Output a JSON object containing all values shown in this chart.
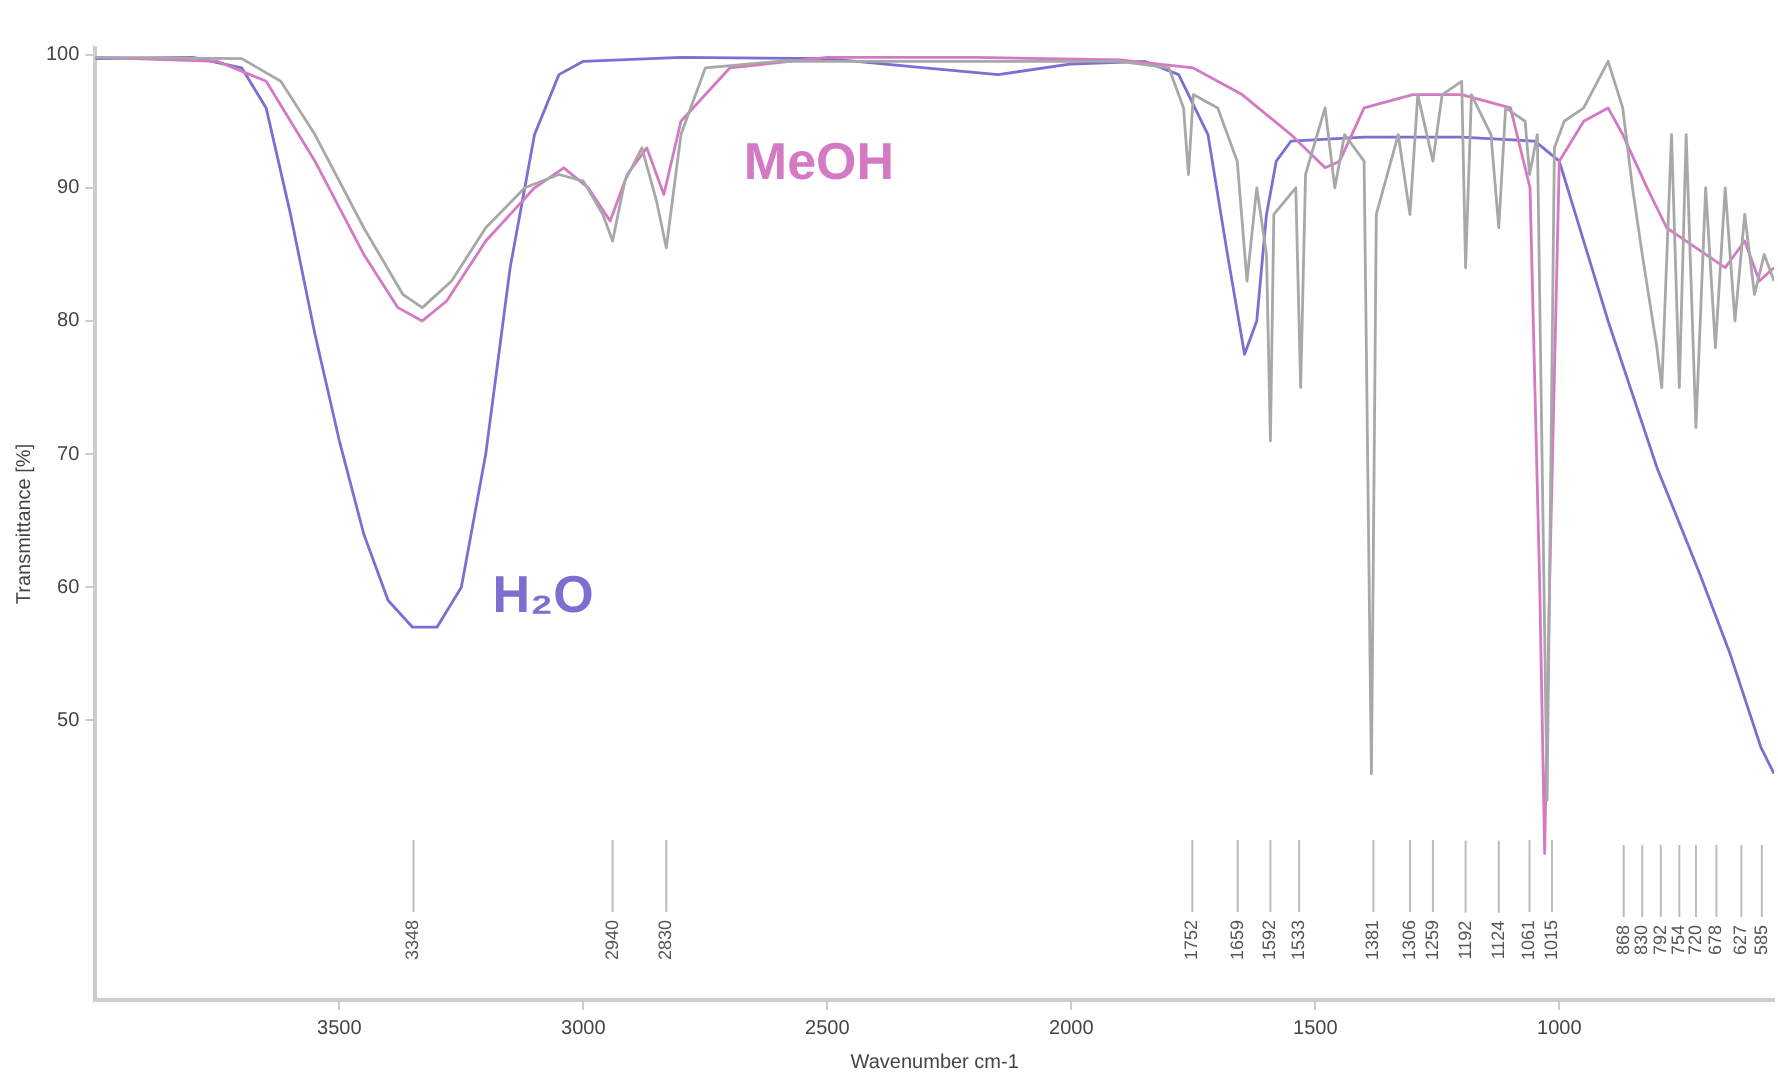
{
  "chart_data": {
    "type": "line",
    "xlabel": "Wavenumber cm-1",
    "ylabel": "Transmittance [%]",
    "xlim": [
      4000,
      560
    ],
    "xticks": [
      3500,
      3000,
      2500,
      2000,
      1500,
      1000
    ],
    "ylim": [
      29,
      100.5
    ],
    "yticks": [
      50,
      60,
      70,
      80,
      90,
      100
    ],
    "marker": "none",
    "line_style": "solid",
    "legend": false,
    "series": [
      {
        "name": null,
        "color": "#a8a8a8",
        "x": [
          4000,
          3700,
          3620,
          3550,
          3450,
          3370,
          3330,
          3270,
          3200,
          3120,
          3050,
          3000,
          2960,
          2940,
          2915,
          2880,
          2850,
          2830,
          2800,
          2750,
          2600,
          2200,
          1900,
          1800,
          1770,
          1760,
          1750,
          1700,
          1660,
          1640,
          1620,
          1600,
          1592,
          1585,
          1540,
          1530,
          1520,
          1480,
          1460,
          1440,
          1400,
          1385,
          1375,
          1330,
          1306,
          1290,
          1259,
          1240,
          1200,
          1192,
          1180,
          1140,
          1124,
          1110,
          1070,
          1061,
          1045,
          1025,
          1010,
          990,
          950,
          900,
          870,
          850,
          830,
          800,
          790,
          770,
          754,
          740,
          720,
          700,
          680,
          660,
          640,
          620,
          600,
          580,
          560
        ],
        "values": [
          99.8,
          99.7,
          98,
          94,
          87,
          82,
          81,
          83,
          87,
          90,
          91,
          90.5,
          88,
          86,
          90.5,
          93,
          89,
          85.5,
          94,
          99,
          99.5,
          99.5,
          99.5,
          99,
          96,
          91,
          97,
          96,
          92,
          83,
          90,
          85,
          71,
          88,
          90,
          75,
          91,
          96,
          90,
          94,
          92,
          46,
          88,
          94,
          88,
          97,
          92,
          97,
          98,
          84,
          97,
          94,
          87,
          96,
          95,
          91,
          94,
          44,
          93,
          95,
          96,
          99.5,
          96,
          90,
          85,
          78,
          75,
          94,
          75,
          94,
          72,
          90,
          78,
          90,
          80,
          88,
          82,
          85,
          83
        ]
      },
      {
        "name": "MeOH",
        "color": "#d47ac4",
        "x": [
          4000,
          3750,
          3650,
          3550,
          3450,
          3380,
          3330,
          3280,
          3200,
          3100,
          3040,
          2990,
          2945,
          2910,
          2870,
          2835,
          2800,
          2700,
          2500,
          2200,
          1900,
          1750,
          1650,
          1550,
          1480,
          1450,
          1400,
          1300,
          1200,
          1100,
          1060,
          1040,
          1030,
          1020,
          1000,
          950,
          900,
          870,
          820,
          780,
          740,
          700,
          660,
          620,
          590,
          560
        ],
        "values": [
          99.8,
          99.5,
          98,
          92,
          85,
          81,
          80,
          81.5,
          86,
          90,
          91.5,
          90,
          87.5,
          91,
          93,
          89.5,
          95,
          99,
          99.8,
          99.8,
          99.6,
          99,
          97,
          94,
          91.5,
          92,
          96,
          97,
          97,
          96,
          90,
          60,
          40,
          60,
          92,
          95,
          96,
          94,
          90,
          87,
          86,
          85,
          84,
          86,
          83,
          84
        ]
      },
      {
        "name": "H₂O",
        "color": "#7b6fd0",
        "x": [
          4000,
          3800,
          3700,
          3650,
          3600,
          3550,
          3500,
          3450,
          3400,
          3350,
          3300,
          3250,
          3200,
          3150,
          3100,
          3050,
          3000,
          2800,
          2500,
          2300,
          2150,
          2000,
          1850,
          1780,
          1720,
          1680,
          1645,
          1620,
          1600,
          1580,
          1550,
          1400,
          1200,
          1050,
          1000,
          900,
          800,
          712,
          650,
          587,
          560
        ],
        "values": [
          99.7,
          99.8,
          99,
          96,
          88,
          79,
          71,
          64,
          59,
          57,
          57,
          60,
          70,
          84,
          94,
          98.5,
          99.5,
          99.8,
          99.7,
          99,
          98.5,
          99.3,
          99.5,
          98.5,
          94,
          85,
          77.5,
          80,
          88,
          92,
          93.5,
          93.8,
          93.8,
          93.5,
          92,
          80,
          69,
          61,
          55,
          48,
          46
        ]
      }
    ],
    "ref_lines": [
      {
        "axis": "x",
        "value": 3348,
        "label": "3348"
      },
      {
        "axis": "x",
        "value": 2940,
        "label": "2940"
      },
      {
        "axis": "x",
        "value": 2830,
        "label": "2830"
      },
      {
        "axis": "x",
        "value": 1752,
        "label": "1752"
      },
      {
        "axis": "x",
        "value": 1659,
        "label": "1659"
      },
      {
        "axis": "x",
        "value": 1592,
        "label": "1592"
      },
      {
        "axis": "x",
        "value": 1533,
        "label": "1533"
      },
      {
        "axis": "x",
        "value": 1381,
        "label": "1381"
      },
      {
        "axis": "x",
        "value": 1306,
        "label": "1306"
      },
      {
        "axis": "x",
        "value": 1259,
        "label": "1259"
      },
      {
        "axis": "x",
        "value": 1192,
        "label": "1192"
      },
      {
        "axis": "x",
        "value": 1124,
        "label": "1124"
      },
      {
        "axis": "x",
        "value": 1061,
        "label": "1061"
      },
      {
        "axis": "x",
        "value": 1015,
        "label": "1015"
      },
      {
        "axis": "x",
        "value": 868,
        "label": "868"
      },
      {
        "axis": "x",
        "value": 830,
        "label": "830"
      },
      {
        "axis": "x",
        "value": 792,
        "label": "792"
      },
      {
        "axis": "x",
        "value": 754,
        "label": "754"
      },
      {
        "axis": "x",
        "value": 720,
        "label": "720"
      },
      {
        "axis": "x",
        "value": 678,
        "label": "678"
      },
      {
        "axis": "x",
        "value": 627,
        "label": "627"
      },
      {
        "axis": "x",
        "value": 585,
        "label": "585"
      }
    ]
  }
}
